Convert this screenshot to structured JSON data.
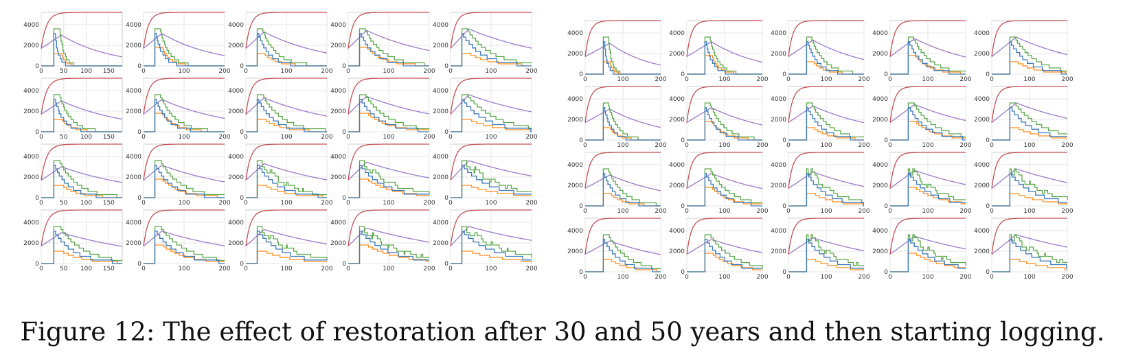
{
  "caption": "Figure 12: The effect of restoration after 30 and 50 years and then starting logging.",
  "colors": {
    "red": "#c44e52",
    "purple": "#9a79c9",
    "green": "#5aa84a",
    "orange": "#ff8c1a",
    "blue": "#3d7ab8",
    "grid": "#e6e6e6",
    "frame": "#cccccc"
  },
  "chart_data": [
    {
      "type": "line",
      "panel": "left",
      "restoration_start": 30,
      "rows": 4,
      "cols": 5,
      "xticks_narrow": [
        0,
        50,
        100,
        150
      ],
      "xticks_wide": [
        0,
        100,
        200
      ],
      "yticks": [
        0,
        2000,
        4000
      ],
      "ylim": [
        0,
        5200
      ],
      "narrow_panels": [
        [
          0,
          0
        ],
        [
          1,
          0
        ],
        [
          2,
          0
        ],
        [
          3,
          0
        ]
      ],
      "series_colors": [
        "red",
        "purple",
        "green",
        "orange",
        "blue"
      ]
    },
    {
      "type": "line",
      "panel": "right",
      "restoration_start": 50,
      "rows": 4,
      "cols": 5,
      "xticks_wide": [
        0,
        100,
        200
      ],
      "yticks": [
        0,
        2000,
        4000
      ],
      "ylim": [
        0,
        5200
      ],
      "series_colors": [
        "red",
        "purple",
        "green",
        "orange",
        "blue"
      ]
    }
  ]
}
